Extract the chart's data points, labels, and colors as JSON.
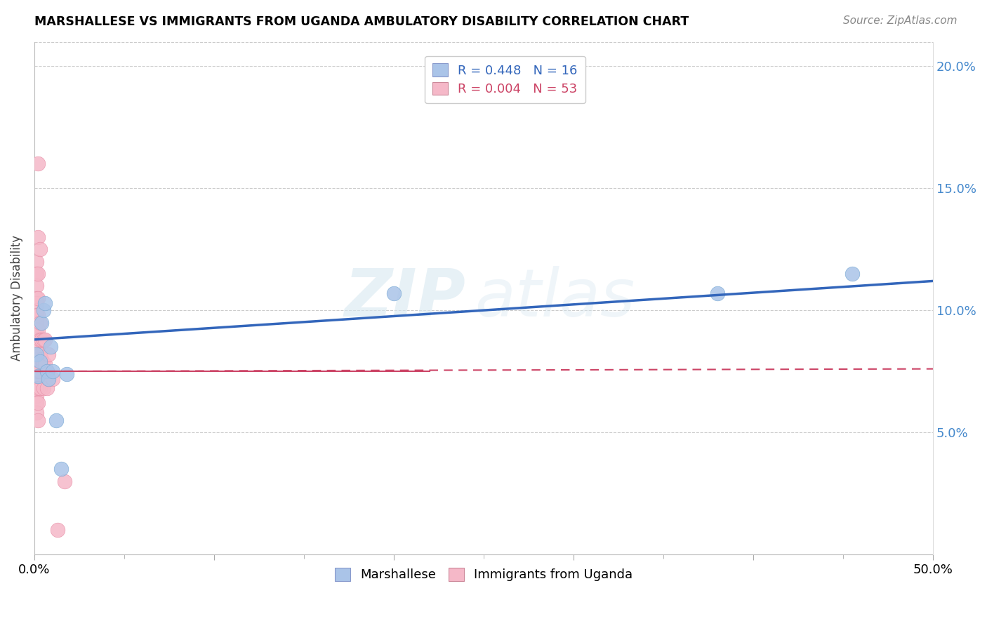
{
  "title": "MARSHALLESE VS IMMIGRANTS FROM UGANDA AMBULATORY DISABILITY CORRELATION CHART",
  "source": "Source: ZipAtlas.com",
  "ylabel": "Ambulatory Disability",
  "xlim": [
    0,
    0.5
  ],
  "ylim": [
    0,
    0.21
  ],
  "yticks_right": [
    0.05,
    0.1,
    0.15,
    0.2
  ],
  "watermark_zip": "ZIP",
  "watermark_atlas": "atlas",
  "blue_line": {
    "x0": 0.0,
    "y0": 0.088,
    "x1": 0.5,
    "y1": 0.112
  },
  "red_line": {
    "x0": 0.0,
    "y0": 0.075,
    "x1": 0.5,
    "y1": 0.076
  },
  "series": [
    {
      "name": "Marshallese",
      "R": 0.448,
      "N": 16,
      "color": "#aac4e8",
      "edge_color": "#7aaad4",
      "x": [
        0.001,
        0.002,
        0.003,
        0.004,
        0.005,
        0.006,
        0.007,
        0.008,
        0.009,
        0.01,
        0.012,
        0.015,
        0.018,
        0.2,
        0.38,
        0.455
      ],
      "y": [
        0.082,
        0.073,
        0.079,
        0.095,
        0.1,
        0.103,
        0.075,
        0.072,
        0.085,
        0.075,
        0.055,
        0.035,
        0.074,
        0.107,
        0.107,
        0.115
      ]
    },
    {
      "name": "Immigrants from Uganda",
      "R": 0.004,
      "N": 53,
      "color": "#f5b8c8",
      "edge_color": "#e890a8",
      "x": [
        0.001,
        0.001,
        0.001,
        0.001,
        0.001,
        0.001,
        0.001,
        0.001,
        0.001,
        0.001,
        0.001,
        0.001,
        0.001,
        0.001,
        0.001,
        0.001,
        0.001,
        0.001,
        0.001,
        0.001,
        0.002,
        0.002,
        0.002,
        0.002,
        0.002,
        0.002,
        0.002,
        0.002,
        0.002,
        0.002,
        0.002,
        0.002,
        0.003,
        0.003,
        0.003,
        0.003,
        0.003,
        0.003,
        0.003,
        0.004,
        0.004,
        0.005,
        0.005,
        0.005,
        0.006,
        0.006,
        0.007,
        0.007,
        0.008,
        0.008,
        0.01,
        0.013,
        0.017
      ],
      "y": [
        0.12,
        0.115,
        0.11,
        0.105,
        0.103,
        0.1,
        0.098,
        0.095,
        0.092,
        0.088,
        0.085,
        0.082,
        0.08,
        0.078,
        0.075,
        0.072,
        0.068,
        0.065,
        0.062,
        0.058,
        0.16,
        0.13,
        0.115,
        0.105,
        0.098,
        0.092,
        0.085,
        0.08,
        0.075,
        0.068,
        0.062,
        0.055,
        0.125,
        0.095,
        0.088,
        0.082,
        0.078,
        0.075,
        0.068,
        0.088,
        0.08,
        0.088,
        0.078,
        0.068,
        0.088,
        0.078,
        0.075,
        0.068,
        0.082,
        0.072,
        0.072,
        0.01,
        0.03
      ]
    }
  ],
  "legend_top": {
    "marshallese_color": "#aac4e8",
    "uganda_color": "#f5b8c8",
    "marshallese_R": "R = 0.448",
    "marshallese_N": "N = 16",
    "uganda_R": "R = 0.004",
    "uganda_N": "N = 53"
  },
  "legend_bottom": {
    "marshallese_label": "Marshallese",
    "uganda_label": "Immigrants from Uganda"
  }
}
